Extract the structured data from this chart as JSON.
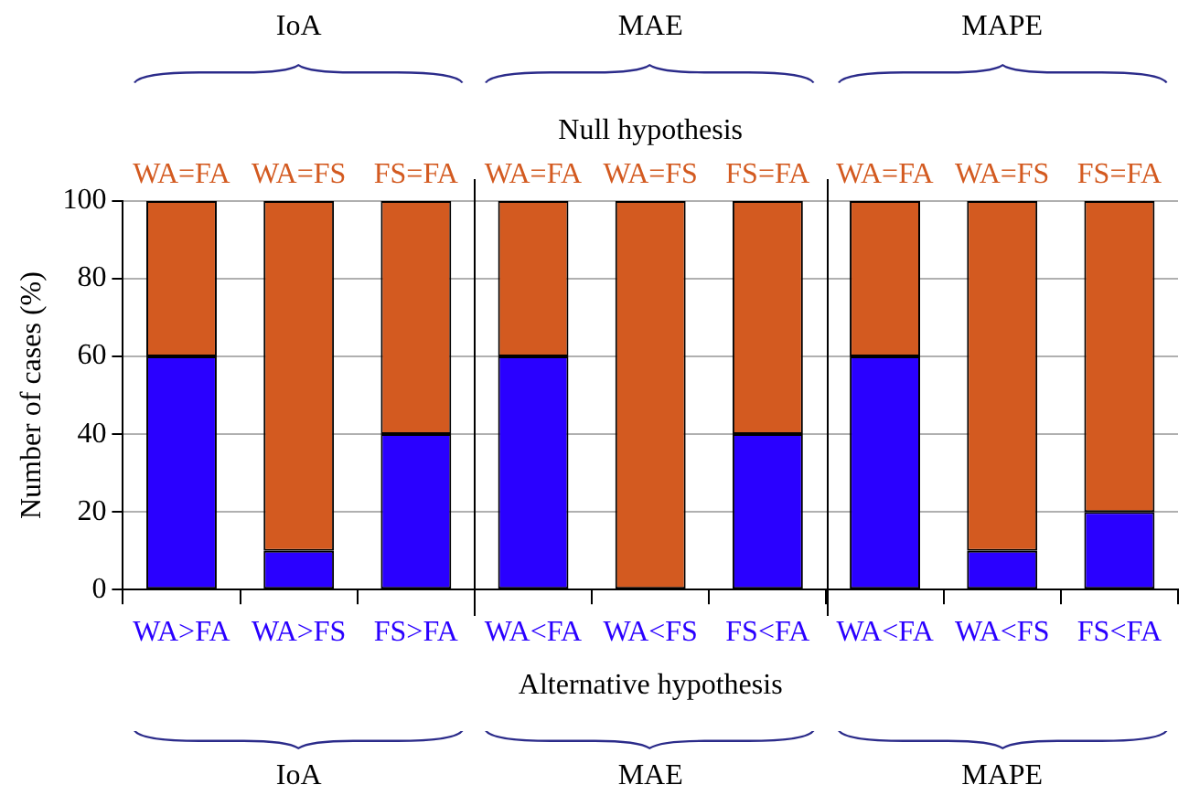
{
  "chart_data": {
    "type": "bar",
    "stacked": true,
    "ylabel": "Number of cases (%)",
    "xlabel": "Alternative hypothesis",
    "x2label": "Null hypothesis",
    "categories": [
      "WA>FA",
      "WA>FS",
      "FS>FA",
      "WA<FA",
      "WA<FS",
      "FS<FA",
      "WA<FA",
      "WA<FS",
      "FS<FA"
    ],
    "series": [
      {
        "color": "#2a00ff",
        "values": [
          60,
          10,
          40,
          60,
          0,
          40,
          60,
          10,
          20
        ]
      },
      {
        "color": "#d35a20",
        "values": [
          40,
          90,
          60,
          40,
          100,
          60,
          40,
          90,
          80
        ]
      }
    ],
    "ylim": [
      0,
      100
    ],
    "yticks": [
      0,
      20,
      40,
      60,
      80,
      100
    ],
    "grid": "y",
    "legend": false,
    "annotations": [
      "IoA",
      "MAE",
      "MAPE",
      "WA=FA",
      "WA=FS",
      "FS=FA",
      "WA=FA",
      "WA=FS",
      "FS=FA",
      "WA=FA",
      "WA=FS",
      "FS=FA",
      "IoA",
      "MAE",
      "MAPE"
    ]
  }
}
